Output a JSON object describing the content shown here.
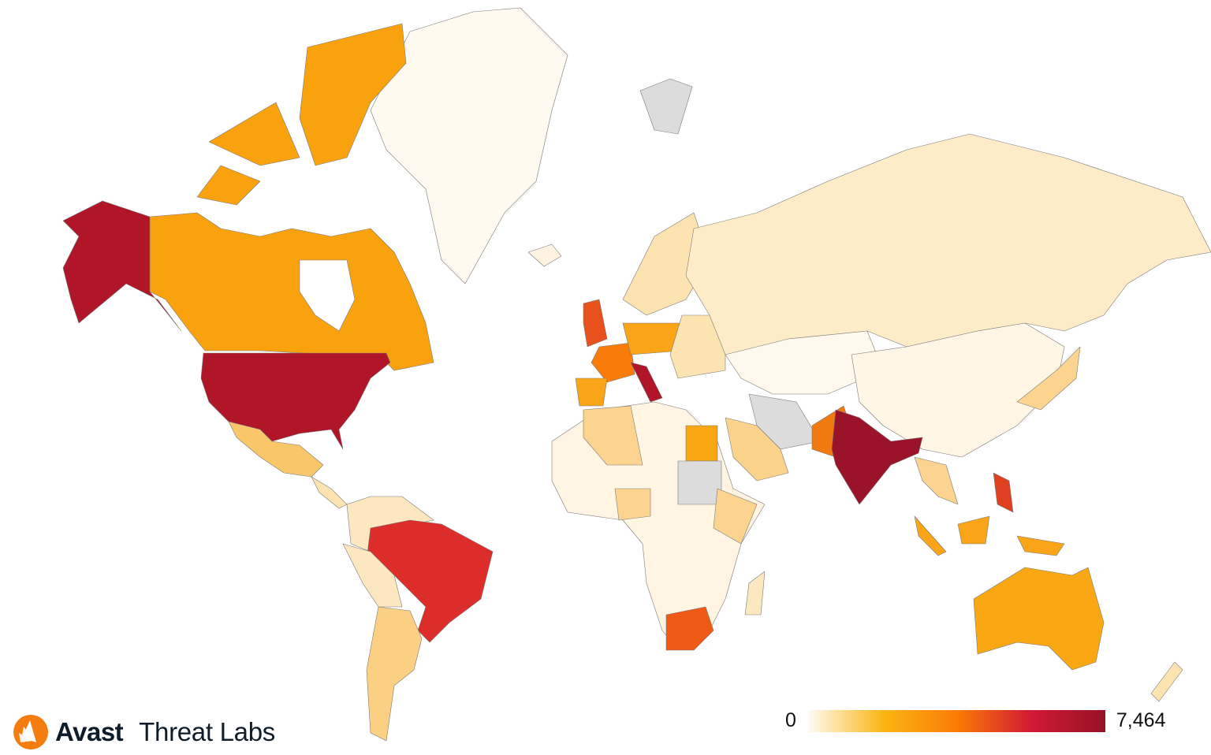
{
  "brand": {
    "name": "Avast",
    "product": "Threat Labs",
    "logo_color": "#f57c0f"
  },
  "legend": {
    "min_label": "0",
    "max_label": "7,464",
    "min": 0,
    "max": 7464,
    "gradient": [
      "#fffaf0",
      "#fbb614",
      "#fb7b05",
      "#d11a35",
      "#971226"
    ]
  },
  "no_data_color": "#dcdcdc",
  "region_fills": {
    "greenland": "#fffaf0",
    "canada": "#f9a20e",
    "alaska_usa": "#b01628",
    "usa": "#b01628",
    "mexico": "#f9c76a",
    "central_america": "#fde3b0",
    "northern_south_america": "#fde7c0",
    "brazil": "#dc2d2a",
    "peru_bolivia": "#fde7c0",
    "argentina_chile": "#fcd083",
    "iceland": "#fdf3e0",
    "svalbard": "#dcdcdc",
    "uk": "#e8501c",
    "france": "#f97c0b",
    "spain": "#f9a517",
    "italy": "#b01628",
    "germany_poland": "#f9a517",
    "scandinavia": "#fde3b0",
    "eastern_europe": "#fce4b0",
    "russia": "#feecc8",
    "central_asia": "#fff8ec",
    "china": "#fff6e5",
    "iran": "#dcdcdc",
    "saudi_arabia": "#fbd38a",
    "pakistan": "#f07a10",
    "india": "#9b1328",
    "southeast_asia": "#fcd490",
    "indonesia": "#f9a517",
    "philippines": "#e04020",
    "japan": "#fcd490",
    "australia": "#f9a813",
    "new_zealand": "#fde3b0",
    "africa": "#fff5e2",
    "egypt": "#f9a813",
    "sudan": "#dcdcdc",
    "algeria": "#fcd490",
    "nigeria": "#fcd490",
    "east_africa": "#fcd490",
    "south_africa": "#ef5a16",
    "madagascar": "#fde7c0"
  }
}
